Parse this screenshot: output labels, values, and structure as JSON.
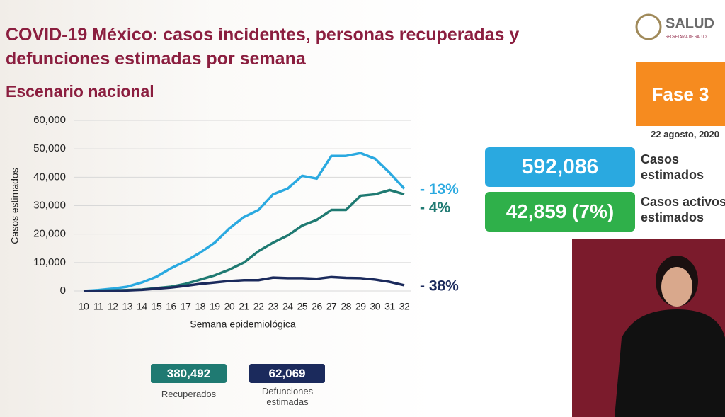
{
  "header": {
    "title": "COVID-19 México: casos incidentes, personas recuperadas y defunciones estimadas por semana",
    "subtitle": "Escenario nacional",
    "logo": "SALUD",
    "logo_sub": "SECRETARÍA DE SALUD"
  },
  "panel": {
    "phase": "Fase 3",
    "date": "22 agosto, 2020",
    "cases_value": "592,086",
    "cases_label": "Casos estimados",
    "active_value": "42,859 (7%)",
    "active_label": "Casos activos estimados"
  },
  "totals": {
    "recovered_value": "380,492",
    "recovered_label": "Recuperados",
    "deaths_value": "62,069",
    "deaths_label": "Defunciones estimadas"
  },
  "chart_data": {
    "type": "line",
    "x_label": "Semana epidemiológica",
    "y_label": "Casos estimados",
    "categories": [
      "10",
      "11",
      "12",
      "13",
      "14",
      "15",
      "16",
      "17",
      "18",
      "19",
      "20",
      "21",
      "22",
      "23",
      "24",
      "25",
      "26",
      "27",
      "28",
      "29",
      "30",
      "31",
      "32"
    ],
    "ylim": [
      0,
      60000
    ],
    "yticks": [
      0,
      {
        "value": 10000,
        "label": "10,000"
      },
      {
        "value": 20000,
        "label": "20,000"
      },
      {
        "value": 30000,
        "label": "30,000"
      },
      {
        "value": 40000,
        "label": "40,000"
      },
      {
        "value": 50000,
        "label": "50,000"
      },
      {
        "value": 60000,
        "label": "60,000"
      }
    ],
    "grid": true,
    "series": [
      {
        "color": "#2aa9e0",
        "end_label": "- 13%",
        "values": [
          0,
          300,
          800,
          1500,
          3000,
          5000,
          8000,
          10500,
          13500,
          17000,
          22000,
          26000,
          28500,
          34000,
          36000,
          40500,
          39500,
          47500,
          47500,
          48500,
          46500,
          41500,
          36000
        ]
      },
      {
        "color": "#1f7a72",
        "end_label": "- 4%",
        "values": [
          0,
          100,
          200,
          300,
          500,
          1000,
          1500,
          2500,
          4000,
          5500,
          7500,
          10000,
          14000,
          17000,
          19500,
          23000,
          25000,
          28500,
          28500,
          33500,
          34000,
          35500,
          34000
        ]
      },
      {
        "color": "#1b2a5c",
        "end_label": "- 38%",
        "values": [
          0,
          50,
          100,
          200,
          400,
          800,
          1200,
          1800,
          2500,
          3000,
          3500,
          3800,
          3800,
          4700,
          4500,
          4500,
          4300,
          4900,
          4600,
          4500,
          4000,
          3200,
          2000
        ]
      }
    ]
  }
}
